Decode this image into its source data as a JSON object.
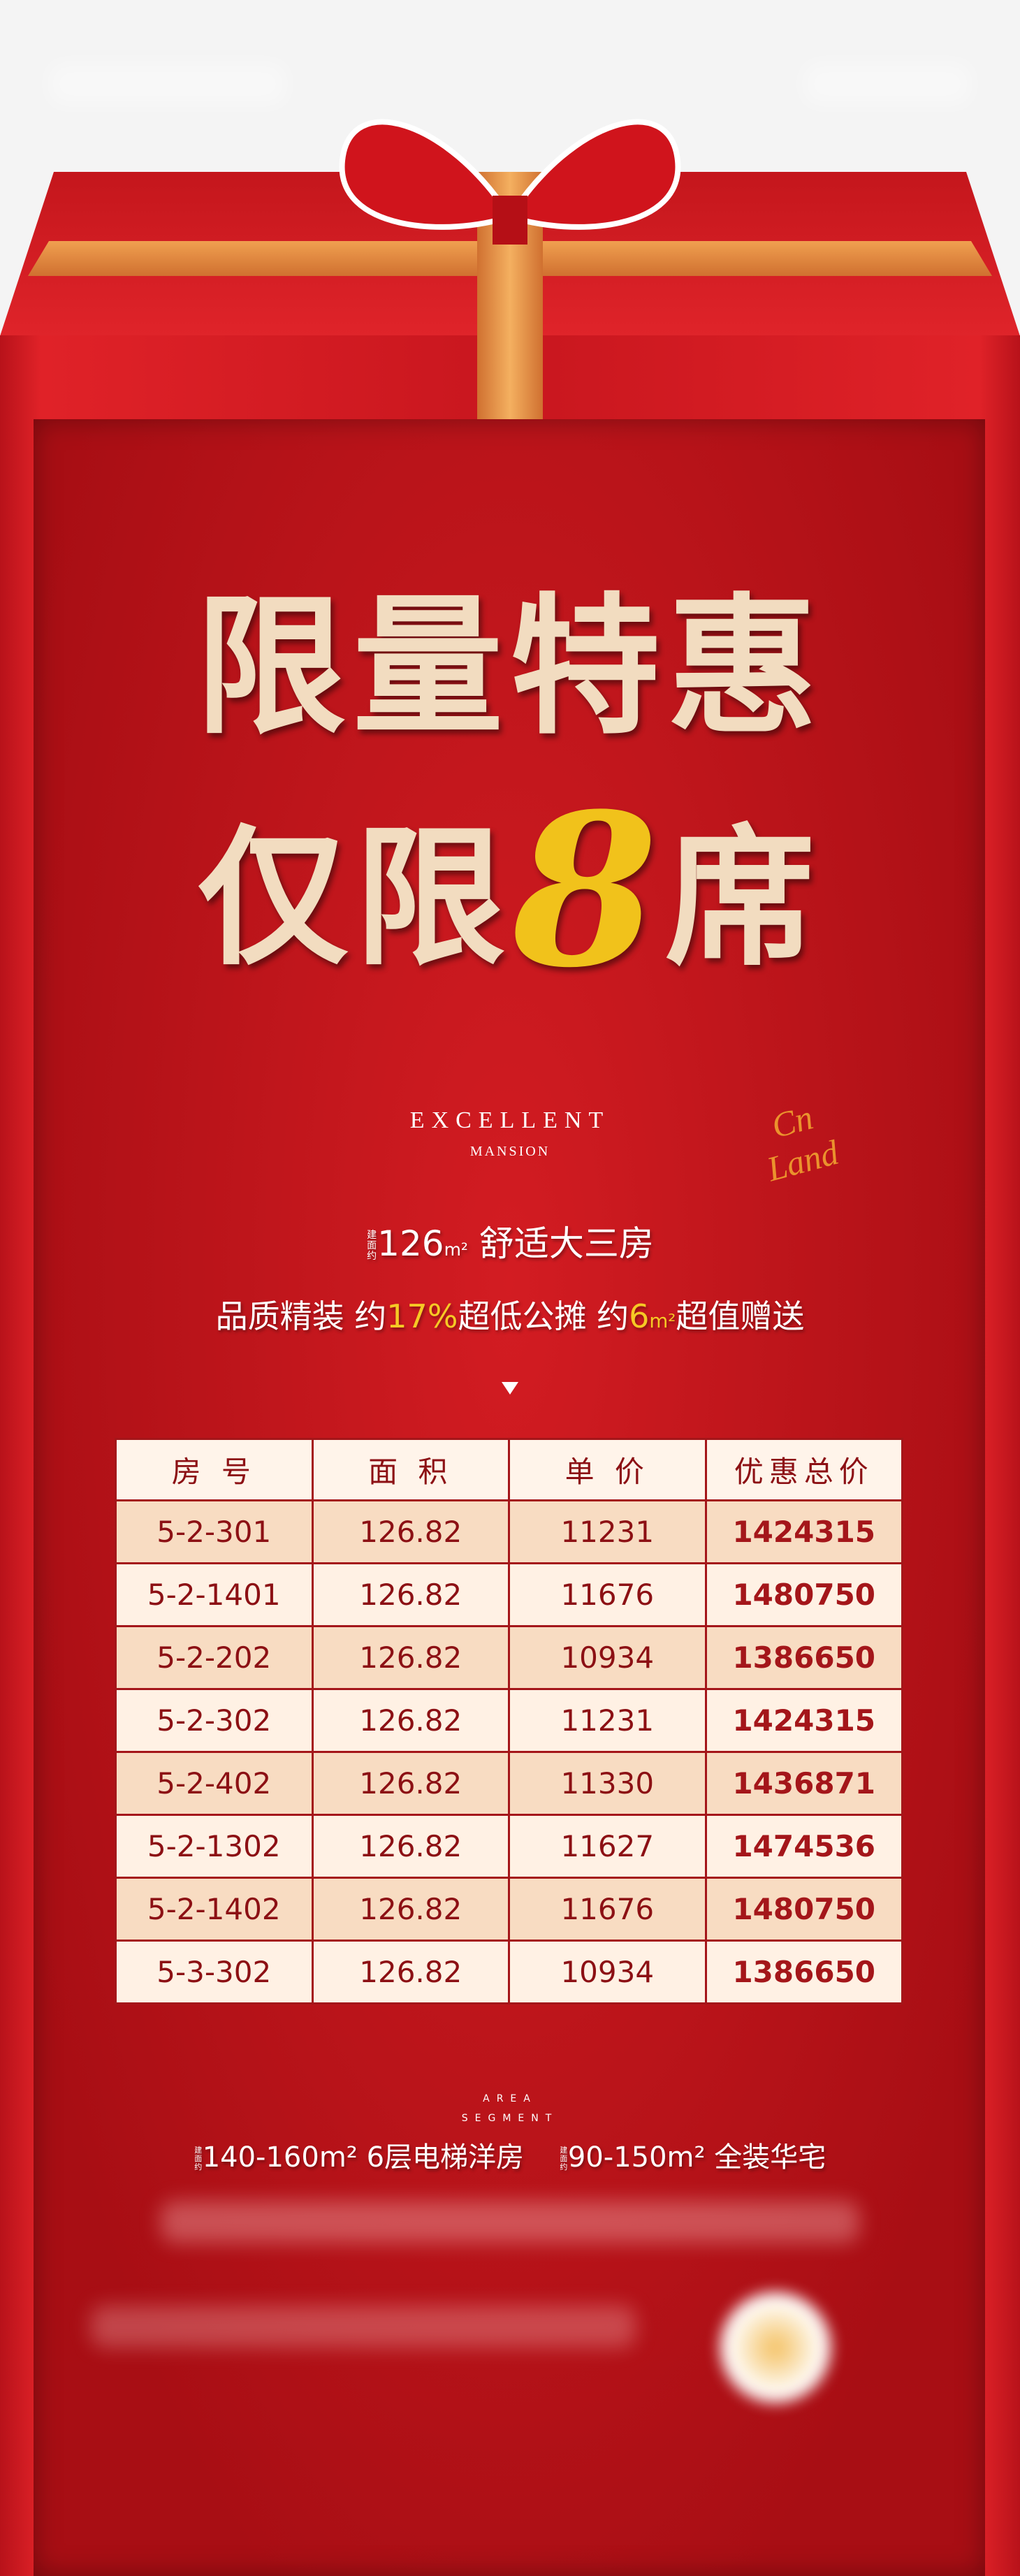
{
  "poster": {
    "headline_line1": "限量特惠",
    "headline_line2_pre": "仅限",
    "headline_number": "8",
    "headline_line2_post": "席",
    "brand_logo": {
      "line1": "EXCELLENT",
      "line2": "MANSION",
      "signature": "Cn Land"
    },
    "feature1": {
      "prefix": "建面约",
      "area": "126",
      "unit": "m²",
      "text": "舒适大三房"
    },
    "feature2": {
      "a": "品质精装",
      "b": "约",
      "pct": "17%",
      "c": "超低公摊",
      "d": "约",
      "gift": "6",
      "unit": "m²",
      "e": "超值赠送"
    },
    "table": {
      "headers": [
        "房 号",
        "面 积",
        "单 价",
        "优惠总价"
      ],
      "rows": [
        [
          "5-2-301",
          "126.82",
          "11231",
          "1424315"
        ],
        [
          "5-2-1401",
          "126.82",
          "11676",
          "1480750"
        ],
        [
          "5-2-202",
          "126.82",
          "10934",
          "1386650"
        ],
        [
          "5-2-302",
          "126.82",
          "11231",
          "1424315"
        ],
        [
          "5-2-402",
          "126.82",
          "11330",
          "1436871"
        ],
        [
          "5-2-1302",
          "126.82",
          "11627",
          "1474536"
        ],
        [
          "5-2-1402",
          "126.82",
          "11676",
          "1480750"
        ],
        [
          "5-3-302",
          "126.82",
          "10934",
          "1386650"
        ]
      ]
    },
    "area_segment": {
      "line1": "AREA",
      "line2": "SEGMENT"
    },
    "segments": [
      {
        "prefix": "建面约",
        "range": "140-160m²",
        "desc": "6层电梯洋房"
      },
      {
        "prefix": "建面约",
        "range": "90-150m²",
        "desc": "全装华宅"
      }
    ],
    "colors": {
      "red": "#c8161e",
      "gold": "#f1c21b",
      "cream": "#f2dcc0",
      "table_text": "#8c1014"
    }
  }
}
